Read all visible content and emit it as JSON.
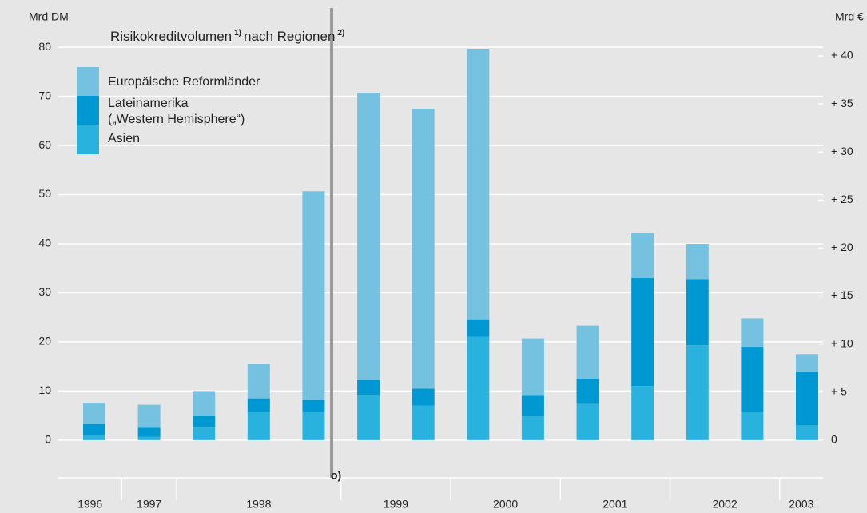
{
  "chart_data": {
    "type": "stacked_bar",
    "title": {
      "main": "Risikokreditvolumen",
      "sup1": "1)",
      "rest": "nach Regionen",
      "sup2": "2)"
    },
    "y_axis_label": "Mrd DM",
    "y2_axis_label": "Mrd €",
    "annotation": "o)",
    "categories": [
      null,
      null,
      null,
      null,
      null,
      null,
      null,
      null,
      null,
      null,
      null,
      null,
      null,
      null
    ],
    "groups": [
      {
        "label": "1996",
        "count": 1
      },
      {
        "label": "1997",
        "count": 1
      },
      {
        "label": "1998",
        "count": 3
      },
      {
        "label": "1999",
        "count": 2
      },
      {
        "label": "2000",
        "count": 2
      },
      {
        "label": "2001",
        "count": 2
      },
      {
        "label": "2002",
        "count": 2
      },
      {
        "label": "2003",
        "count": 1
      }
    ],
    "series": [
      {
        "name": "Asien",
        "color": "#2ab2de",
        "values": [
          1,
          0.7,
          2.7,
          5.7,
          5.7,
          9.2,
          7,
          21,
          5,
          7.5,
          11,
          19.3,
          5.8,
          3
        ]
      },
      {
        "name": "Lateinamerika\n(„Western Hemisphere“)",
        "color": "#0098d2",
        "values": [
          2.3,
          2.0,
          2.3,
          2.8,
          2.5,
          3.1,
          3.5,
          3.6,
          4.2,
          5,
          22,
          13.5,
          13.2,
          11
        ]
      },
      {
        "name": "Europäische Reformländer",
        "color": "#74c2e0",
        "values": [
          4.3,
          4.5,
          5,
          7,
          42.5,
          58.4,
          57,
          55.1,
          11.5,
          10.8,
          9.2,
          7.2,
          5.8,
          3.5
        ]
      }
    ],
    "ylim": [
      -8,
      88
    ],
    "yticks": [
      0,
      10,
      20,
      30,
      40,
      50,
      60,
      70,
      80
    ],
    "y2lim": [
      -4.09,
      44.99
    ],
    "y2ticks": [
      0,
      {
        "value": 5,
        "label": "+ 5"
      },
      {
        "value": 10,
        "label": "+ 10"
      },
      {
        "value": 15,
        "label": "+ 15"
      },
      {
        "value": 20,
        "label": "+ 20"
      },
      {
        "value": 25,
        "label": "+ 25"
      },
      {
        "value": 30,
        "label": "+ 30"
      },
      {
        "value": 35,
        "label": "+ 35"
      },
      {
        "value": 40,
        "label": "+ 40"
      }
    ],
    "grid": true
  }
}
